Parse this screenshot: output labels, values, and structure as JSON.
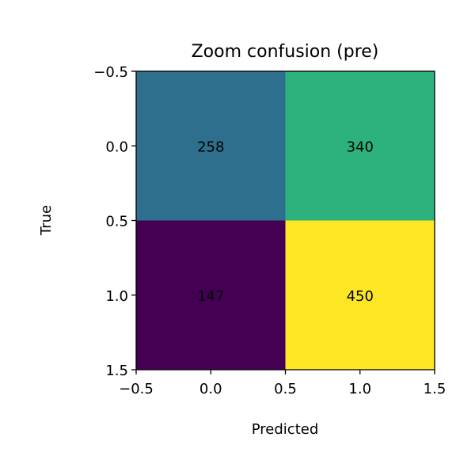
{
  "chart_data": {
    "type": "heatmap",
    "title": "Zoom confusion (pre)",
    "xlabel": "Predicted",
    "ylabel": "True",
    "xlim": [
      -0.5,
      1.5
    ],
    "ylim": [
      1.5,
      -0.5
    ],
    "x_ticks": [
      "−0.5",
      "0.0",
      "0.5",
      "1.0",
      "1.5"
    ],
    "y_ticks": [
      "−0.5",
      "0.0",
      "0.5",
      "1.0",
      "1.5"
    ],
    "matrix": [
      [
        258,
        340
      ],
      [
        147,
        450
      ]
    ],
    "cell_labels": [
      [
        "258",
        "340"
      ],
      [
        "147",
        "450"
      ]
    ],
    "colormap": "viridis",
    "cell_colors": [
      [
        "#2e6f8e",
        "#2db27d"
      ],
      [
        "#440154",
        "#fde725"
      ]
    ],
    "grid": false,
    "legend": "none"
  }
}
